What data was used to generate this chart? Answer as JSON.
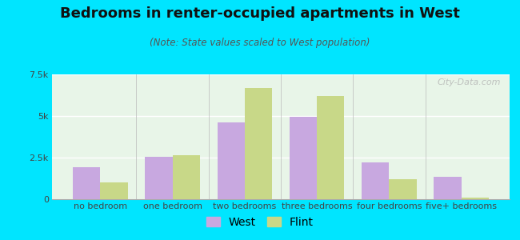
{
  "title": "Bedrooms in renter-occupied apartments in West",
  "subtitle": "(Note: State values scaled to West population)",
  "categories": [
    "no bedroom",
    "one bedroom",
    "two bedrooms",
    "three bedrooms",
    "four bedrooms",
    "five+ bedrooms"
  ],
  "west_values": [
    1900,
    2550,
    4600,
    4950,
    2200,
    1350
  ],
  "flint_values": [
    1000,
    2650,
    6700,
    6200,
    1200,
    80
  ],
  "west_color": "#c8a8e0",
  "flint_color": "#c8d888",
  "bg_outer": "#00e5ff",
  "bg_plot_top": "#e8f5e8",
  "bg_plot_bottom": "#f5fdf0",
  "ylim": [
    0,
    7500
  ],
  "yticks": [
    0,
    2500,
    5000,
    7500
  ],
  "ytick_labels": [
    "0",
    "2.5k",
    "5k",
    "7.5k"
  ],
  "bar_width": 0.38,
  "legend_labels": [
    "West",
    "Flint"
  ],
  "watermark": "City-Data.com",
  "title_fontsize": 13,
  "subtitle_fontsize": 8.5,
  "tick_fontsize": 8,
  "legend_fontsize": 10
}
